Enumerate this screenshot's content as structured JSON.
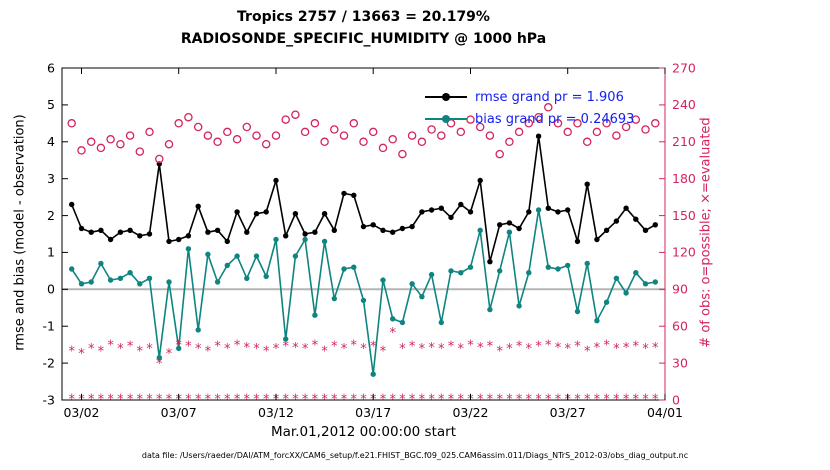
{
  "title": {
    "line1": "Tropics 2757 / 13663 = 20.179%",
    "line2": "RADIOSONDE_SPECIFIC_HUMIDITY @ 1000 hPa"
  },
  "axes": {
    "left_label": "rmse and bias (model - observation)",
    "right_label": "# of obs: o=possible; ×=evaluated",
    "x_label": "Mar.01,2012 00:00:00 start",
    "left_ticks": [
      6,
      5,
      4,
      3,
      2,
      1,
      0,
      -1,
      -2,
      -3
    ],
    "right_ticks": [
      270,
      240,
      210,
      180,
      150,
      120,
      90,
      60,
      30,
      0
    ],
    "x_ticks": [
      {
        "day": 2,
        "label": "03/02"
      },
      {
        "day": 7,
        "label": "03/07"
      },
      {
        "day": 12,
        "label": "03/12"
      },
      {
        "day": 17,
        "label": "03/17"
      },
      {
        "day": 22,
        "label": "03/22"
      },
      {
        "day": 27,
        "label": "03/27"
      },
      {
        "day": 32,
        "label": "04/01"
      }
    ]
  },
  "legend": [
    {
      "name": "rmse",
      "label": "rmse grand pr = 1.906",
      "color": "#000000"
    },
    {
      "name": "bias",
      "label": "bias grand pr = 0.24693",
      "color": "#0e8580"
    }
  ],
  "caption": "data file: /Users/raeder/DAI/ATM_forcXX/CAM6_setup/f.e21.FHIST_BGC.f09_025.CAM6assim.011/Diags_NTrS_2012-03/obs_diag_output.nc",
  "colors": {
    "rmse": "#000000",
    "bias": "#0e8580",
    "obs_pink": "#d4245a",
    "legend_text_blue": "#1420f0",
    "zero_line": "#b5b5b5",
    "accent_pink": "#d4245a"
  },
  "chart_data": {
    "type": "line",
    "title": "Tropics 2757 / 13663 = 20.179% | RADIOSONDE_SPECIFIC_HUMIDITY @ 1000 hPa",
    "xlabel": "Mar.01,2012 00:00:00 start",
    "ylabel_left": "rmse and bias (model - observation)",
    "ylabel_right": "# of obs: o=possible; ×=evaluated",
    "xlim": [
      1,
      32
    ],
    "ylim_left": [
      -3,
      6
    ],
    "ylim_right": [
      0,
      270
    ],
    "grid": false,
    "zero_line": true,
    "x_unit": "days since Mar 01, 2012 00:00 (12-hour bins)",
    "x": [
      1.5,
      2,
      2.5,
      3,
      3.5,
      4,
      4.5,
      5,
      5.5,
      6,
      6.5,
      7,
      7.5,
      8,
      8.5,
      9,
      9.5,
      10,
      10.5,
      11,
      11.5,
      12,
      12.5,
      13,
      13.5,
      14,
      14.5,
      15,
      15.5,
      16,
      16.5,
      17,
      17.5,
      18,
      18.5,
      19,
      19.5,
      20,
      20.5,
      21,
      21.5,
      22,
      22.5,
      23,
      23.5,
      24,
      24.5,
      25,
      25.5,
      26,
      26.5,
      27,
      27.5,
      28,
      28.5,
      29,
      29.5,
      30,
      30.5,
      31,
      31.5
    ],
    "series": [
      {
        "name": "rmse",
        "axis": "left",
        "marker": "filled-circle",
        "color": "#000000",
        "grand_value": 1.906,
        "values": [
          2.3,
          1.65,
          1.55,
          1.6,
          1.35,
          1.55,
          1.6,
          1.45,
          1.5,
          3.4,
          1.3,
          1.35,
          1.45,
          2.25,
          1.55,
          1.6,
          1.3,
          2.1,
          1.55,
          2.05,
          2.1,
          2.95,
          1.45,
          2.05,
          1.5,
          1.55,
          2.05,
          1.6,
          2.6,
          2.55,
          1.7,
          1.75,
          1.6,
          1.55,
          1.65,
          1.7,
          2.1,
          2.15,
          2.2,
          1.95,
          2.3,
          2.1,
          2.95,
          0.75,
          1.75,
          1.8,
          1.65,
          2.1,
          4.15,
          2.2,
          2.1,
          2.15,
          1.3,
          2.85,
          1.35,
          1.6,
          1.85,
          2.2,
          1.9,
          1.6,
          1.75
        ]
      },
      {
        "name": "bias",
        "axis": "left",
        "marker": "filled-circle",
        "color": "#0e8580",
        "grand_value": 0.24693,
        "values": [
          0.55,
          0.15,
          0.2,
          0.7,
          0.25,
          0.3,
          0.45,
          0.15,
          0.3,
          -1.85,
          0.2,
          -1.6,
          1.1,
          -1.1,
          0.95,
          0.2,
          0.65,
          0.9,
          0.3,
          0.9,
          0.35,
          1.35,
          -1.35,
          0.9,
          1.35,
          -0.7,
          1.3,
          -0.25,
          0.55,
          0.6,
          -0.3,
          -2.3,
          0.25,
          -0.8,
          -0.9,
          0.15,
          -0.2,
          0.4,
          -0.9,
          0.5,
          0.45,
          0.6,
          1.6,
          -0.55,
          0.5,
          1.55,
          -0.45,
          0.45,
          2.15,
          0.6,
          0.55,
          0.65,
          -0.6,
          0.7,
          -0.85,
          -0.35,
          0.3,
          -0.1,
          0.45,
          0.15,
          0.2
        ]
      },
      {
        "name": "possible_obs",
        "axis": "right",
        "marker": "open-circle",
        "color": "#d4245a",
        "values": [
          225,
          203,
          210,
          205,
          212,
          208,
          215,
          202,
          218,
          196,
          208,
          225,
          230,
          222,
          215,
          210,
          218,
          212,
          222,
          215,
          208,
          215,
          228,
          232,
          218,
          225,
          210,
          220,
          215,
          225,
          210,
          218,
          205,
          212,
          200,
          215,
          210,
          220,
          215,
          225,
          218,
          228,
          222,
          215,
          200,
          210,
          218,
          225,
          230,
          238,
          225,
          218,
          225,
          210,
          218,
          225,
          215,
          222,
          228,
          220,
          225
        ]
      },
      {
        "name": "evaluated_obs",
        "axis": "right",
        "marker": "asterisk",
        "color": "#d4245a",
        "values": [
          40,
          38,
          42,
          40,
          45,
          42,
          44,
          40,
          42,
          30,
          38,
          45,
          44,
          42,
          40,
          44,
          42,
          45,
          43,
          42,
          40,
          42,
          44,
          43,
          42,
          45,
          40,
          44,
          42,
          45,
          42,
          44,
          40,
          55,
          42,
          44,
          42,
          43,
          42,
          44,
          42,
          45,
          43,
          44,
          40,
          42,
          44,
          42,
          44,
          45,
          43,
          42,
          44,
          40,
          43,
          45,
          42,
          43,
          44,
          42,
          43
        ]
      },
      {
        "name": "zero_count_row",
        "axis": "right",
        "marker": "asterisk",
        "color": "#d4245a",
        "constant": 1
      }
    ]
  }
}
